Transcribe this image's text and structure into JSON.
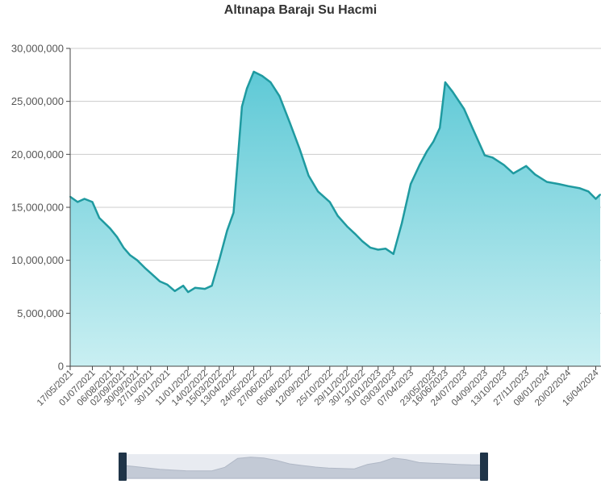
{
  "colors": {
    "line": "#1f9aa0",
    "area_top": "#5ec9d6",
    "area_bottom": "#c9eff2",
    "grid": "#cccccc",
    "axis": "#444444",
    "slider_bg": "#d5dbe5",
    "slider_handle": "#1f3448"
  },
  "chart_data": {
    "type": "area",
    "title": "Altınapa Barajı Su Hacmi",
    "xlabel": "",
    "ylabel": "",
    "ylim": [
      0,
      30000000
    ],
    "grid": true,
    "legend": "none",
    "y_ticks": [
      {
        "value": 0,
        "label": "0"
      },
      {
        "value": 5000000,
        "label": "5,000,000"
      },
      {
        "value": 10000000,
        "label": "10,000,000"
      },
      {
        "value": 15000000,
        "label": "15,000,000"
      },
      {
        "value": 20000000,
        "label": "20,000,000"
      },
      {
        "value": 25000000,
        "label": "25,000,000"
      },
      {
        "value": 30000000,
        "label": "30,000,000"
      }
    ],
    "x_tick_labels": [
      "17/05/2021",
      "01/07/2021",
      "06/08/2021",
      "02/09/2021",
      "30/09/2021",
      "27/10/2021",
      "30/11/2021",
      "11/01/2022",
      "14/02/2022",
      "15/03/2022",
      "13/04/2022",
      "24/05/2022",
      "27/06/2022",
      "05/08/2022",
      "12/09/2022",
      "25/10/2022",
      "29/11/2022",
      "30/12/2022",
      "31/01/2023",
      "03/03/2023",
      "07/04/2023",
      "23/05/2023",
      "16/06/2023",
      "24/07/2023",
      "04/09/2023",
      "13/10/2023",
      "27/11/2023",
      "08/01/2024",
      "20/02/2024",
      "16/04/2024"
    ],
    "x": [
      "17/05/2021",
      "01/06/2021",
      "15/06/2021",
      "01/07/2021",
      "15/07/2021",
      "06/08/2021",
      "20/08/2021",
      "02/09/2021",
      "15/09/2021",
      "30/09/2021",
      "15/10/2021",
      "27/10/2021",
      "15/11/2021",
      "30/11/2021",
      "15/12/2021",
      "01/01/2022",
      "11/01/2022",
      "25/01/2022",
      "14/02/2022",
      "28/02/2022",
      "15/03/2022",
      "31/03/2022",
      "13/04/2022",
      "30/04/2022",
      "10/05/2022",
      "24/05/2022",
      "10/06/2022",
      "27/06/2022",
      "15/07/2022",
      "05/08/2022",
      "25/08/2022",
      "12/09/2022",
      "01/10/2022",
      "25/10/2022",
      "10/11/2022",
      "29/11/2022",
      "15/12/2022",
      "30/12/2022",
      "15/01/2023",
      "31/01/2023",
      "15/02/2023",
      "03/03/2023",
      "20/03/2023",
      "07/04/2023",
      "25/04/2023",
      "10/05/2023",
      "23/05/2023",
      "05/06/2023",
      "16/06/2023",
      "01/07/2023",
      "24/07/2023",
      "10/08/2023",
      "04/09/2023",
      "20/09/2023",
      "13/10/2023",
      "01/11/2023",
      "27/11/2023",
      "15/12/2023",
      "08/01/2024",
      "01/02/2024",
      "20/02/2024",
      "15/03/2024",
      "01/04/2024",
      "16/04/2024",
      "25/04/2024"
    ],
    "values": [
      16000000,
      15500000,
      15800000,
      15500000,
      14000000,
      13000000,
      12200000,
      11200000,
      10500000,
      10000000,
      9300000,
      8800000,
      8000000,
      7700000,
      7100000,
      7600000,
      7000000,
      7400000,
      7300000,
      7600000,
      10000000,
      12800000,
      14500000,
      24500000,
      26200000,
      27800000,
      27400000,
      26800000,
      25500000,
      23000000,
      20500000,
      18000000,
      16500000,
      15500000,
      14200000,
      13200000,
      12500000,
      11800000,
      11200000,
      11000000,
      11100000,
      10600000,
      13500000,
      17200000,
      19000000,
      20300000,
      21200000,
      22500000,
      26800000,
      25900000,
      24300000,
      22500000,
      19900000,
      19700000,
      19000000,
      18200000,
      18900000,
      18100000,
      17400000,
      17200000,
      17000000,
      16800000,
      16500000,
      15800000,
      16200000
    ]
  },
  "slider": {
    "overview_values": [
      16000000,
      14000000,
      12000000,
      10000000,
      8800000,
      7700000,
      7400000,
      7600000,
      12800000,
      26200000,
      27800000,
      26800000,
      23000000,
      18000000,
      15500000,
      13200000,
      11800000,
      11000000,
      10600000,
      17200000,
      20300000,
      26800000,
      24300000,
      19900000,
      19000000,
      18100000,
      17200000,
      16500000,
      16200000
    ],
    "range": [
      0,
      1
    ]
  }
}
